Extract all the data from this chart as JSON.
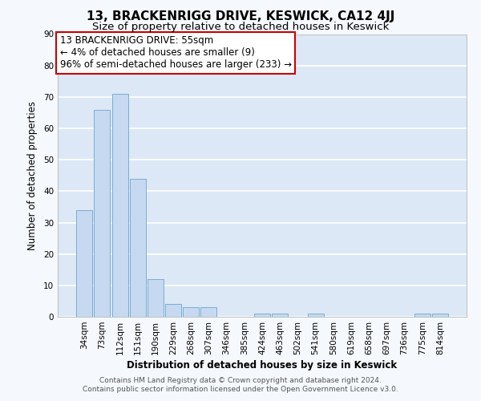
{
  "title": "13, BRACKENRIGG DRIVE, KESWICK, CA12 4JJ",
  "subtitle": "Size of property relative to detached houses in Keswick",
  "xlabel": "Distribution of detached houses by size in Keswick",
  "ylabel": "Number of detached properties",
  "footer_lines": [
    "Contains HM Land Registry data © Crown copyright and database right 2024.",
    "Contains public sector information licensed under the Open Government Licence v3.0."
  ],
  "annotation_lines": [
    "13 BRACKENRIGG DRIVE: 55sqm",
    "← 4% of detached houses are smaller (9)",
    "96% of semi-detached houses are larger (233) →"
  ],
  "bar_labels": [
    "34sqm",
    "73sqm",
    "112sqm",
    "151sqm",
    "190sqm",
    "229sqm",
    "268sqm",
    "307sqm",
    "346sqm",
    "385sqm",
    "424sqm",
    "463sqm",
    "502sqm",
    "541sqm",
    "580sqm",
    "619sqm",
    "658sqm",
    "697sqm",
    "736sqm",
    "775sqm",
    "814sqm"
  ],
  "bar_values": [
    34,
    66,
    71,
    44,
    12,
    4,
    3,
    3,
    0,
    0,
    1,
    1,
    0,
    1,
    0,
    0,
    0,
    0,
    0,
    1,
    1
  ],
  "bar_color": "#c6d9f0",
  "bar_edge_color": "#7aadd4",
  "ylim": [
    0,
    90
  ],
  "yticks": [
    0,
    10,
    20,
    30,
    40,
    50,
    60,
    70,
    80,
    90
  ],
  "annotation_box_color": "#ffffff",
  "annotation_box_edge_color": "#cc0000",
  "plot_bg_color": "#dce8f5",
  "fig_bg_color": "#f5f8fc",
  "footer_bg_color": "#ffffff",
  "grid_color": "#ffffff",
  "title_fontsize": 11,
  "subtitle_fontsize": 9.5,
  "annotation_fontsize": 8.5,
  "axis_label_fontsize": 8.5,
  "tick_fontsize": 7.5,
  "footer_fontsize": 6.5
}
